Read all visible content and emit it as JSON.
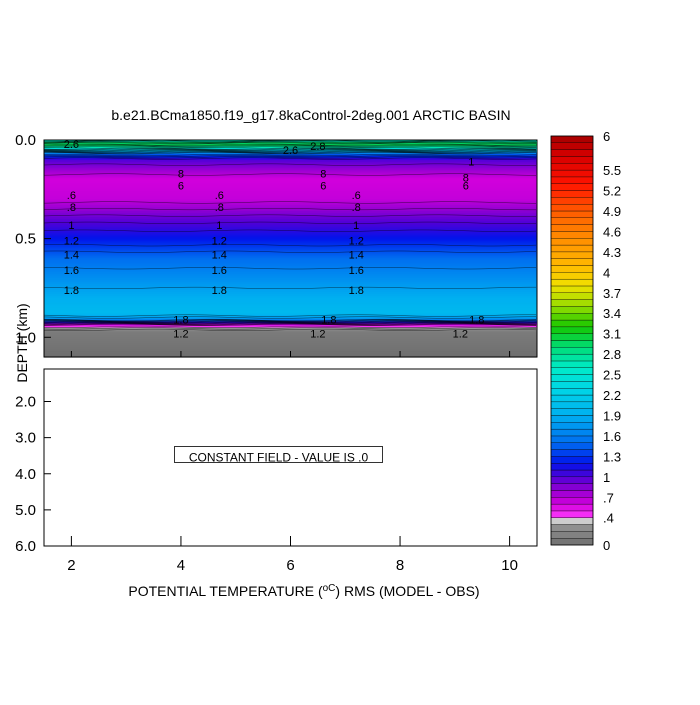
{
  "chart_data": {
    "type": "heatmap",
    "title": "b.e21.BCma1850.f19_g17.8kaControl-2deg.001 ARCTIC BASIN",
    "xlabel": "POTENTIAL TEMPERATURE (",
    "xlabel_unit": "oC",
    "xlabel_rest": ") RMS (MODEL - OBS)",
    "ylabel": "DEPTH (km)",
    "xlim": [
      1.5,
      10.5
    ],
    "x_ticks": [
      "2",
      "4",
      "6",
      "8",
      "10"
    ],
    "upper_panel": {
      "ylim": [
        0.0,
        1.1
      ],
      "y_ticks": [
        "0.0",
        "0.5",
        "1.0"
      ],
      "profile": [
        {
          "depth": 0.0,
          "value": 2.5
        },
        {
          "depth": 0.02,
          "value": 3.1
        },
        {
          "depth": 0.04,
          "value": 2.6
        },
        {
          "depth": 0.07,
          "value": 1.5
        },
        {
          "depth": 0.1,
          "value": 1.0
        },
        {
          "depth": 0.15,
          "value": 0.8
        },
        {
          "depth": 0.2,
          "value": 0.6
        },
        {
          "depth": 0.3,
          "value": 0.65
        },
        {
          "depth": 0.4,
          "value": 0.95
        },
        {
          "depth": 0.5,
          "value": 1.2
        },
        {
          "depth": 0.6,
          "value": 1.5
        },
        {
          "depth": 0.7,
          "value": 1.7
        },
        {
          "depth": 0.8,
          "value": 1.9
        },
        {
          "depth": 0.88,
          "value": 2.0
        },
        {
          "depth": 0.91,
          "value": 1.7
        },
        {
          "depth": 0.94,
          "value": 0.5
        },
        {
          "depth": 0.97,
          "value": 0.1
        },
        {
          "depth": 1.1,
          "value": 0.0
        }
      ],
      "contour_labels": [
        {
          "text": "2.6",
          "x": 2.0,
          "depth": 0.02
        },
        {
          "text": "2.6",
          "x": 6.0,
          "depth": 0.05
        },
        {
          "text": "2.8",
          "x": 6.5,
          "depth": 0.03
        },
        {
          "text": "1",
          "x": 9.3,
          "depth": 0.11
        },
        {
          "text": "8",
          "x": 4.0,
          "depth": 0.17
        },
        {
          "text": "8",
          "x": 6.6,
          "depth": 0.17
        },
        {
          "text": "8",
          "x": 9.2,
          "depth": 0.19
        },
        {
          "text": "6",
          "x": 4.0,
          "depth": 0.23
        },
        {
          "text": "6",
          "x": 6.6,
          "depth": 0.23
        },
        {
          "text": "6",
          "x": 9.2,
          "depth": 0.23
        },
        {
          "text": ".6",
          "x": 2.0,
          "depth": 0.28
        },
        {
          "text": ".6",
          "x": 4.7,
          "depth": 0.28
        },
        {
          "text": ".6",
          "x": 7.2,
          "depth": 0.28
        },
        {
          "text": ".8",
          "x": 2.0,
          "depth": 0.34
        },
        {
          "text": ".8",
          "x": 4.7,
          "depth": 0.34
        },
        {
          "text": ".8",
          "x": 7.2,
          "depth": 0.34
        },
        {
          "text": "1",
          "x": 2.0,
          "depth": 0.43
        },
        {
          "text": "1",
          "x": 4.7,
          "depth": 0.43
        },
        {
          "text": "1",
          "x": 7.2,
          "depth": 0.43
        },
        {
          "text": "1.2",
          "x": 2.0,
          "depth": 0.51
        },
        {
          "text": "1.2",
          "x": 4.7,
          "depth": 0.51
        },
        {
          "text": "1.2",
          "x": 7.2,
          "depth": 0.51
        },
        {
          "text": "1.4",
          "x": 2.0,
          "depth": 0.58
        },
        {
          "text": "1.4",
          "x": 4.7,
          "depth": 0.58
        },
        {
          "text": "1.4",
          "x": 7.2,
          "depth": 0.58
        },
        {
          "text": "1.6",
          "x": 2.0,
          "depth": 0.66
        },
        {
          "text": "1.6",
          "x": 4.7,
          "depth": 0.66
        },
        {
          "text": "1.6",
          "x": 7.2,
          "depth": 0.66
        },
        {
          "text": "1.8",
          "x": 2.0,
          "depth": 0.76
        },
        {
          "text": "1.8",
          "x": 4.7,
          "depth": 0.76
        },
        {
          "text": "1.8",
          "x": 7.2,
          "depth": 0.76
        },
        {
          "text": "1.8",
          "x": 4.0,
          "depth": 0.91
        },
        {
          "text": "1.8",
          "x": 6.7,
          "depth": 0.91
        },
        {
          "text": "1.8",
          "x": 9.4,
          "depth": 0.91
        },
        {
          "text": "1.2",
          "x": 4.0,
          "depth": 0.98
        },
        {
          "text": "1.2",
          "x": 6.5,
          "depth": 0.98
        },
        {
          "text": "1.2",
          "x": 9.1,
          "depth": 0.98
        }
      ]
    },
    "lower_panel": {
      "ylim": [
        1.1,
        6.0
      ],
      "y_ticks": [
        "2.0",
        "3.0",
        "4.0",
        "5.0",
        "6.0"
      ],
      "constant_field_text": "CONSTANT FIELD - VALUE IS .0"
    },
    "colorbar": {
      "min": 0,
      "max": 6,
      "step": 0.1,
      "labels": [
        "6",
        "5.5",
        "5.2",
        "4.9",
        "4.6",
        "4.3",
        "4",
        "3.7",
        "3.4",
        "3.1",
        "2.8",
        "2.5",
        "2.2",
        "1.9",
        "1.6",
        "1.3",
        "1",
        ".7",
        ".4",
        "0"
      ]
    },
    "legend_position": "right"
  }
}
